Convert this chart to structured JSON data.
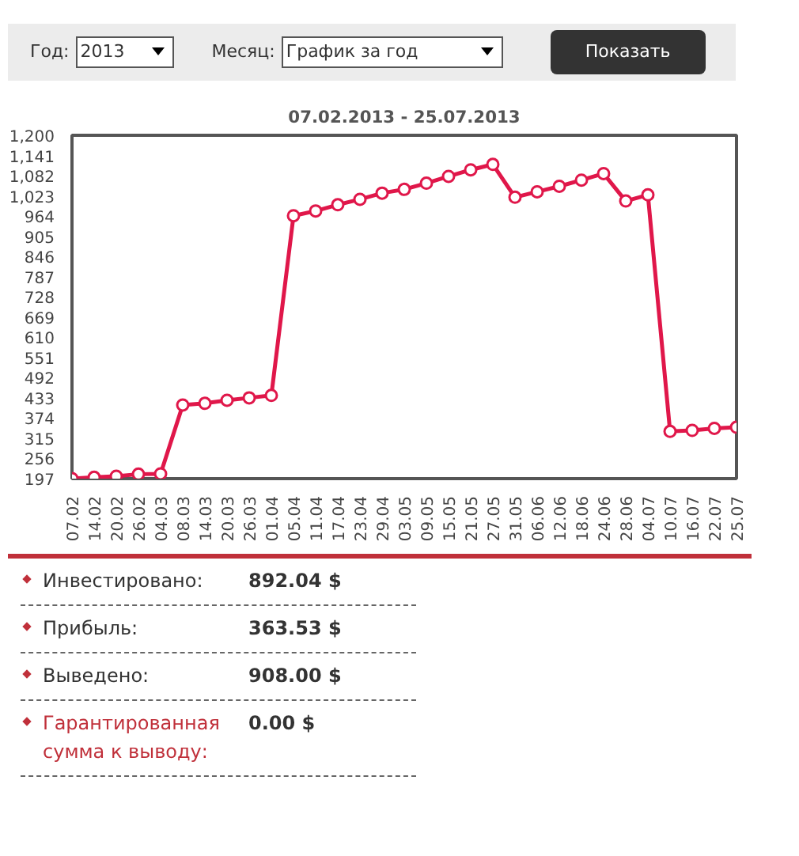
{
  "chart_data": {
    "type": "line",
    "title": "07.02.2013 - 25.07.2013",
    "categories": [
      "07.02",
      "14.02",
      "20.02",
      "26.02",
      "04.03",
      "08.03",
      "14.03",
      "20.03",
      "26.03",
      "01.04",
      "05.04",
      "11.04",
      "17.04",
      "23.04",
      "29.04",
      "03.05",
      "09.05",
      "15.05",
      "21.05",
      "27.05",
      "31.05",
      "06.06",
      "12.06",
      "18.06",
      "24.06",
      "28.06",
      "04.07",
      "10.07",
      "16.07",
      "22.07",
      "25.07"
    ],
    "series": [
      {
        "color": "#e0174a",
        "values": [
          197,
          201,
          204,
          210,
          211,
          412,
          417,
          426,
          433,
          440,
          965,
          979,
          997,
          1013,
          1031,
          1042,
          1060,
          1080,
          1099,
          1115,
          1019,
          1035,
          1051,
          1069,
          1088,
          1008,
          1026,
          335,
          338,
          344,
          347
        ]
      }
    ],
    "ylim": [
      197,
      1200
    ],
    "yticks": [
      197,
      256,
      315,
      374,
      433,
      492,
      551,
      610,
      669,
      728,
      787,
      846,
      905,
      964,
      {
        "value": 1023,
        "label": "1,023"
      },
      {
        "value": 1082,
        "label": "1,082"
      },
      {
        "value": 1141,
        "label": "1,141"
      },
      {
        "value": 1200,
        "label": "1,200"
      }
    ],
    "grid": false,
    "marker": "circle",
    "line_style": "solid",
    "annotations": [
      "Год:",
      "2013",
      "Месяц:",
      "График за год",
      "Показать",
      "Инвестировано:",
      "892.04 $",
      "Прибыль:",
      "363.53 $",
      "Выведено:",
      "908.00 $",
      "Гарантированная сумма к выводу:",
      "0.00 $"
    ]
  }
}
